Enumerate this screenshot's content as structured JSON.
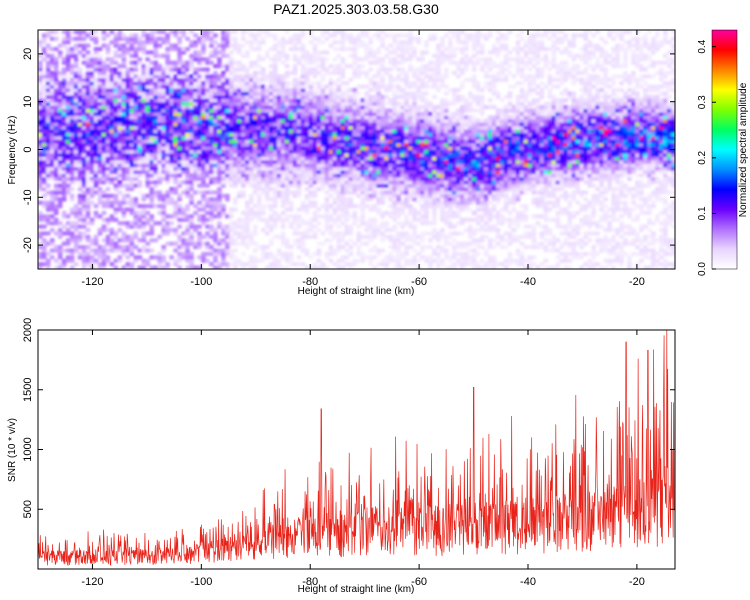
{
  "title": "PAZ1.2025.303.03.58.G30",
  "chart_data": [
    {
      "type": "heatmap",
      "xlabel": "Height of straight line (km)",
      "ylabel": "Frequency (Hz)",
      "xlim": [
        -130,
        -13
      ],
      "ylim": [
        -25,
        25
      ],
      "xticks": [
        -120,
        -100,
        -80,
        -60,
        -40,
        -20
      ],
      "yticks": [
        -20,
        -10,
        0,
        10,
        20
      ],
      "colorbar": {
        "label": "Normalized spectral amplitude",
        "range": [
          0,
          0.43
        ],
        "ticks": [
          0.0,
          0.1,
          0.2,
          0.3,
          0.4
        ],
        "colors": [
          "#ffffff",
          "#e8d4ff",
          "#b070ff",
          "#6a00ff",
          "#0000ff",
          "#0090ff",
          "#00ffff",
          "#00ff60",
          "#80ff00",
          "#ffff00",
          "#ff8000",
          "#ff0000",
          "#ff00a0"
        ]
      },
      "ridge": [
        {
          "x": -128,
          "f": 4
        },
        {
          "x": -120,
          "f": 5
        },
        {
          "x": -110,
          "f": 6
        },
        {
          "x": -100,
          "f": 5
        },
        {
          "x": -90,
          "f": 4
        },
        {
          "x": -80,
          "f": 3
        },
        {
          "x": -70,
          "f": 1
        },
        {
          "x": -60,
          "f": -1
        },
        {
          "x": -50,
          "f": -3
        },
        {
          "x": -45,
          "f": -1
        },
        {
          "x": -40,
          "f": 0
        },
        {
          "x": -30,
          "f": 2
        },
        {
          "x": -20,
          "f": 3
        },
        {
          "x": -13,
          "f": 2
        }
      ]
    },
    {
      "type": "line",
      "xlabel": "Height of straight line (km)",
      "ylabel": "SNR (10 * v/v)",
      "xlim": [
        -130,
        -13
      ],
      "ylim": [
        0,
        2000
      ],
      "xticks": [
        -120,
        -100,
        -80,
        -60,
        -40,
        -20
      ],
      "yticks": [
        500,
        1000,
        1500,
        2000
      ],
      "color": "#e8231a",
      "envelope": [
        {
          "x": -130,
          "base": 120,
          "peak": 300
        },
        {
          "x": -110,
          "base": 130,
          "peak": 330
        },
        {
          "x": -100,
          "base": 180,
          "peak": 420
        },
        {
          "x": -90,
          "base": 260,
          "peak": 650
        },
        {
          "x": -80,
          "base": 360,
          "peak": 900
        },
        {
          "x": -70,
          "base": 420,
          "peak": 1000
        },
        {
          "x": -60,
          "base": 430,
          "peak": 1050
        },
        {
          "x": -50,
          "base": 450,
          "peak": 1150
        },
        {
          "x": -40,
          "base": 470,
          "peak": 1250
        },
        {
          "x": -30,
          "base": 520,
          "peak": 1400
        },
        {
          "x": -20,
          "base": 600,
          "peak": 1650
        },
        {
          "x": -15,
          "base": 700,
          "peak": 1900
        },
        {
          "x": -13,
          "base": 500,
          "peak": 1700
        }
      ],
      "spikes": [
        {
          "x": -78,
          "y": 1340
        },
        {
          "x": -50,
          "y": 1520
        },
        {
          "x": -43,
          "y": 1280
        },
        {
          "x": -22,
          "y": 1900
        },
        {
          "x": -18,
          "y": 1830
        },
        {
          "x": -14.5,
          "y": 2000
        }
      ]
    }
  ]
}
